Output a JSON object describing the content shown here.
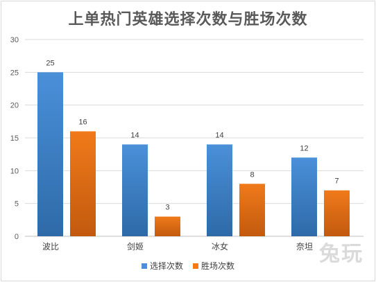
{
  "chart_data": {
    "type": "bar",
    "title": "上单热门英雄选择次数与胜场次数",
    "categories": [
      "波比",
      "剑姬",
      "冰女",
      "奈坦"
    ],
    "series": [
      {
        "name": "选择次数",
        "values": [
          25,
          14,
          14,
          12
        ],
        "color": "#4a90d9",
        "color_dark": "#2e6aa8"
      },
      {
        "name": "胜场次数",
        "values": [
          16,
          3,
          8,
          7
        ],
        "color": "#f07a1a",
        "color_dark": "#c25a0e"
      }
    ],
    "ylim": [
      0,
      30
    ],
    "yticks": [
      0,
      5,
      10,
      15,
      20,
      25,
      30
    ],
    "grid": true,
    "legend_position": "bottom"
  },
  "watermark": "兔玩"
}
